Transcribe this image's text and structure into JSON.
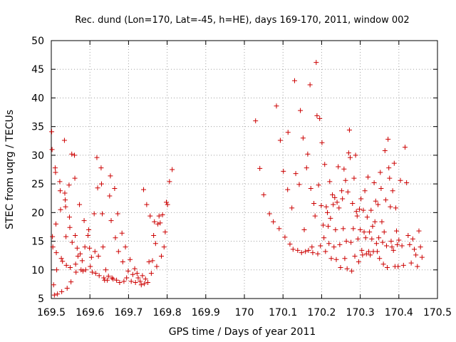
{
  "chart_data": {
    "type": "scatter",
    "title": "Rec. dund (Lon=170, Lat=-45, h=HE), days 169-170, 2011, window 002",
    "xlabel": "GPS time / Days of year 2011",
    "ylabel": "STEC from uqrg / TECUs",
    "xlim": [
      169.5,
      170.5
    ],
    "ylim": [
      5,
      50
    ],
    "xticks": [
      "169.5",
      "169.6",
      "169.7",
      "169.8",
      "169.9",
      "170",
      "170.1",
      "170.2",
      "170.3",
      "170.4",
      "170.5"
    ],
    "yticks": [
      "5",
      "10",
      "15",
      "20",
      "25",
      "30",
      "35",
      "40",
      "45",
      "50"
    ],
    "grid": true,
    "marker": "plus",
    "series": [
      {
        "color": "#cc0000",
        "points": [
          [
            169.501,
            34.1
          ],
          [
            169.502,
            31.0
          ],
          [
            169.503,
            15.8
          ],
          [
            169.504,
            14.0
          ],
          [
            169.506,
            7.4
          ],
          [
            169.508,
            5.6
          ],
          [
            169.51,
            27.8
          ],
          [
            169.511,
            27.0
          ],
          [
            169.512,
            18.0
          ],
          [
            169.513,
            13.0
          ],
          [
            169.514,
            10.0
          ],
          [
            169.516,
            5.8
          ],
          [
            169.522,
            25.4
          ],
          [
            169.523,
            23.8
          ],
          [
            169.524,
            20.5
          ],
          [
            169.526,
            12.0
          ],
          [
            169.527,
            6.2
          ],
          [
            169.529,
            11.5
          ],
          [
            169.534,
            32.6
          ],
          [
            169.535,
            23.4
          ],
          [
            169.536,
            22.2
          ],
          [
            169.537,
            21.0
          ],
          [
            169.538,
            15.8
          ],
          [
            169.539,
            10.8
          ],
          [
            169.541,
            6.8
          ],
          [
            169.546,
            24.8
          ],
          [
            169.547,
            19.2
          ],
          [
            169.548,
            17.4
          ],
          [
            169.549,
            10.4
          ],
          [
            169.551,
            7.9
          ],
          [
            169.553,
            30.2
          ],
          [
            169.554,
            14.8
          ],
          [
            169.56,
            30.0
          ],
          [
            169.561,
            26.0
          ],
          [
            169.562,
            16.0
          ],
          [
            169.563,
            11.0
          ],
          [
            169.564,
            9.6
          ],
          [
            169.567,
            13.8
          ],
          [
            169.569,
            12.4
          ],
          [
            169.573,
            21.4
          ],
          [
            169.575,
            12.8
          ],
          [
            169.577,
            10.0
          ],
          [
            169.58,
            11.6
          ],
          [
            169.582,
            9.8
          ],
          [
            169.585,
            18.6
          ],
          [
            169.587,
            14.0
          ],
          [
            169.589,
            10.0
          ],
          [
            169.595,
            16.0
          ],
          [
            169.597,
            17.0
          ],
          [
            169.599,
            13.8
          ],
          [
            169.601,
            10.6
          ],
          [
            169.604,
            12.2
          ],
          [
            169.606,
            9.6
          ],
          [
            169.611,
            19.8
          ],
          [
            169.613,
            13.2
          ],
          [
            169.615,
            9.4
          ],
          [
            169.618,
            29.6
          ],
          [
            169.62,
            24.3
          ],
          [
            169.622,
            12.4
          ],
          [
            169.624,
            9.0
          ],
          [
            169.629,
            27.8
          ],
          [
            169.63,
            25.0
          ],
          [
            169.632,
            19.8
          ],
          [
            169.634,
            14.0
          ],
          [
            169.636,
            8.6
          ],
          [
            169.638,
            8.2
          ],
          [
            169.641,
            10.0
          ],
          [
            169.645,
            8.2
          ],
          [
            169.648,
            8.9
          ],
          [
            169.651,
            22.9
          ],
          [
            169.653,
            26.4
          ],
          [
            169.655,
            18.6
          ],
          [
            169.657,
            8.6
          ],
          [
            169.66,
            8.4
          ],
          [
            169.664,
            24.2
          ],
          [
            169.666,
            15.6
          ],
          [
            169.669,
            8.2
          ],
          [
            169.672,
            19.8
          ],
          [
            169.674,
            13.2
          ],
          [
            169.677,
            7.8
          ],
          [
            169.683,
            16.4
          ],
          [
            169.685,
            11.4
          ],
          [
            169.688,
            8.0
          ],
          [
            169.692,
            14.0
          ],
          [
            169.695,
            8.6
          ],
          [
            169.699,
            9.8
          ],
          [
            169.704,
            11.8
          ],
          [
            169.707,
            8.0
          ],
          [
            169.711,
            9.2
          ],
          [
            169.716,
            10.2
          ],
          [
            169.718,
            7.8
          ],
          [
            169.722,
            9.4
          ],
          [
            169.725,
            8.6
          ],
          [
            169.73,
            8.0
          ],
          [
            169.733,
            7.4
          ],
          [
            169.736,
            9.0
          ],
          [
            169.739,
            24.0
          ],
          [
            169.741,
            7.6
          ],
          [
            169.744,
            8.4
          ],
          [
            169.747,
            21.4
          ],
          [
            169.75,
            7.8
          ],
          [
            169.753,
            11.4
          ],
          [
            169.756,
            19.4
          ],
          [
            169.759,
            9.4
          ],
          [
            169.762,
            11.6
          ],
          [
            169.765,
            16.0
          ],
          [
            169.767,
            18.4
          ],
          [
            169.77,
            14.6
          ],
          [
            169.773,
            10.6
          ],
          [
            169.776,
            18.0
          ],
          [
            169.779,
            19.4
          ],
          [
            169.782,
            18.2
          ],
          [
            169.785,
            12.4
          ],
          [
            169.788,
            19.6
          ],
          [
            169.792,
            14.0
          ],
          [
            169.795,
            16.6
          ],
          [
            169.798,
            21.8
          ],
          [
            169.801,
            21.4
          ],
          [
            169.806,
            25.4
          ],
          [
            169.813,
            27.5
          ],
          [
            170.029,
            36.0
          ],
          [
            170.04,
            27.7
          ],
          [
            170.05,
            23.1
          ],
          [
            170.065,
            19.8
          ],
          [
            170.075,
            18.4
          ],
          [
            170.083,
            38.6
          ],
          [
            170.09,
            17.2
          ],
          [
            170.093,
            32.6
          ],
          [
            170.101,
            27.2
          ],
          [
            170.105,
            15.7
          ],
          [
            170.112,
            24.0
          ],
          [
            170.113,
            34.0
          ],
          [
            170.118,
            14.5
          ],
          [
            170.123,
            20.8
          ],
          [
            170.126,
            13.6
          ],
          [
            170.13,
            43.0
          ],
          [
            170.133,
            26.8
          ],
          [
            170.138,
            13.4
          ],
          [
            170.142,
            24.9
          ],
          [
            170.145,
            37.8
          ],
          [
            170.148,
            13.0
          ],
          [
            170.152,
            33.0
          ],
          [
            170.155,
            17.0
          ],
          [
            170.158,
            13.2
          ],
          [
            170.161,
            27.8
          ],
          [
            170.164,
            30.2
          ],
          [
            170.166,
            13.4
          ],
          [
            170.17,
            42.3
          ],
          [
            170.172,
            24.2
          ],
          [
            170.175,
            14.0
          ],
          [
            170.177,
            13.0
          ],
          [
            170.18,
            21.6
          ],
          [
            170.183,
            19.4
          ],
          [
            170.186,
            46.2
          ],
          [
            170.188,
            36.9
          ],
          [
            170.19,
            12.8
          ],
          [
            170.192,
            24.8
          ],
          [
            170.195,
            36.4
          ],
          [
            170.197,
            14.2
          ],
          [
            170.199,
            21.2
          ],
          [
            170.201,
            32.2
          ],
          [
            170.204,
            17.8
          ],
          [
            170.206,
            15.6
          ],
          [
            170.208,
            28.4
          ],
          [
            170.21,
            13.2
          ],
          [
            170.212,
            21.0
          ],
          [
            170.215,
            20.0
          ],
          [
            170.217,
            17.6
          ],
          [
            170.219,
            14.6
          ],
          [
            170.221,
            25.4
          ],
          [
            170.223,
            19.0
          ],
          [
            170.225,
            12.0
          ],
          [
            170.228,
            23.1
          ],
          [
            170.23,
            21.4
          ],
          [
            170.232,
            14.0
          ],
          [
            170.234,
            22.6
          ],
          [
            170.236,
            17.0
          ],
          [
            170.238,
            11.8
          ],
          [
            170.24,
            21.8
          ],
          [
            170.243,
            28.0
          ],
          [
            170.245,
            20.8
          ],
          [
            170.247,
            14.4
          ],
          [
            170.249,
            10.4
          ],
          [
            170.252,
            23.8
          ],
          [
            170.254,
            22.4
          ],
          [
            170.256,
            17.2
          ],
          [
            170.258,
            27.6
          ],
          [
            170.26,
            12.0
          ],
          [
            170.262,
            25.6
          ],
          [
            170.264,
            15.0
          ],
          [
            170.266,
            10.2
          ],
          [
            170.268,
            23.6
          ],
          [
            170.27,
            30.4
          ],
          [
            170.272,
            34.4
          ],
          [
            170.274,
            29.6
          ],
          [
            170.276,
            14.8
          ],
          [
            170.278,
            9.8
          ],
          [
            170.28,
            21.6
          ],
          [
            170.282,
            17.2
          ],
          [
            170.284,
            26.0
          ],
          [
            170.286,
            12.4
          ],
          [
            170.288,
            30.0
          ],
          [
            170.29,
            20.2
          ],
          [
            170.292,
            19.4
          ],
          [
            170.294,
            15.4
          ],
          [
            170.296,
            11.4
          ],
          [
            170.298,
            20.6
          ],
          [
            170.3,
            17.0
          ],
          [
            170.302,
            22.4
          ],
          [
            170.304,
            13.4
          ],
          [
            170.306,
            12.6
          ],
          [
            170.308,
            20.4
          ],
          [
            170.31,
            16.6
          ],
          [
            170.312,
            23.8
          ],
          [
            170.314,
            15.6
          ],
          [
            170.316,
            12.8
          ],
          [
            170.318,
            19.2
          ],
          [
            170.32,
            26.2
          ],
          [
            170.322,
            13.2
          ],
          [
            170.324,
            16.6
          ],
          [
            170.326,
            12.6
          ],
          [
            170.328,
            20.4
          ],
          [
            170.33,
            15.4
          ],
          [
            170.332,
            17.6
          ],
          [
            170.334,
            13.2
          ],
          [
            170.336,
            25.2
          ],
          [
            170.338,
            18.4
          ],
          [
            170.34,
            22.0
          ],
          [
            170.342,
            14.6
          ],
          [
            170.344,
            13.2
          ],
          [
            170.346,
            21.4
          ],
          [
            170.348,
            15.6
          ],
          [
            170.35,
            12.0
          ],
          [
            170.352,
            27.0
          ],
          [
            170.354,
            24.2
          ],
          [
            170.356,
            18.4
          ],
          [
            170.358,
            14.8
          ],
          [
            170.36,
            11.0
          ],
          [
            170.362,
            16.6
          ],
          [
            170.364,
            30.8
          ],
          [
            170.366,
            22.2
          ],
          [
            170.368,
            14.2
          ],
          [
            170.37,
            10.4
          ],
          [
            170.372,
            32.8
          ],
          [
            170.374,
            27.8
          ],
          [
            170.376,
            26.0
          ],
          [
            170.378,
            21.0
          ],
          [
            170.38,
            15.0
          ],
          [
            170.382,
            14.0
          ],
          [
            170.384,
            23.8
          ],
          [
            170.386,
            13.4
          ],
          [
            170.388,
            28.6
          ],
          [
            170.39,
            10.6
          ],
          [
            170.392,
            20.8
          ],
          [
            170.394,
            16.8
          ],
          [
            170.396,
            14.4
          ],
          [
            170.398,
            10.6
          ],
          [
            170.4,
            15.2
          ],
          [
            170.404,
            25.6
          ],
          [
            170.408,
            14.2
          ],
          [
            170.412,
            10.8
          ],
          [
            170.416,
            31.4
          ],
          [
            170.42,
            25.2
          ],
          [
            170.424,
            16.0
          ],
          [
            170.428,
            14.4
          ],
          [
            170.432,
            11.2
          ],
          [
            170.436,
            15.4
          ],
          [
            170.44,
            13.6
          ],
          [
            170.444,
            12.6
          ],
          [
            170.448,
            10.6
          ],
          [
            170.452,
            16.8
          ],
          [
            170.456,
            14.0
          ],
          [
            170.46,
            12.2
          ]
        ]
      }
    ]
  }
}
